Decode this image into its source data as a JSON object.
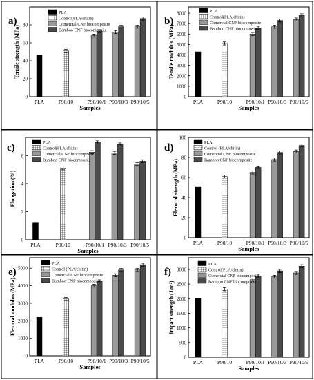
{
  "palette": {
    "border": "#000000",
    "pla": "#000000",
    "comercial": "#9a9a9a",
    "bamboo": "#4a4a4a",
    "control_hatch": "grid-hatch-pattern"
  },
  "chart_data": [
    {
      "type": "bar",
      "panel_label": "a)",
      "ylabel": "Tensile strength (MPa)",
      "xlabel": "Samples",
      "ylim": [
        0,
        100
      ],
      "yticks": [
        0,
        20,
        40,
        60,
        80
      ],
      "categories": [
        "PLA",
        "P90/10",
        "P90/10/1",
        "P90/10/3",
        "P90/10/5"
      ],
      "legend_position": "top-left",
      "series": [
        {
          "name": "PLA",
          "values": [
            46,
            null,
            null,
            null,
            null
          ]
        },
        {
          "name": "Control(PLA/chitin)",
          "values": [
            null,
            51,
            null,
            null,
            null
          ]
        },
        {
          "name": "Comercial CNF biocomposite",
          "values": [
            null,
            null,
            68,
            72,
            78
          ]
        },
        {
          "name": "Bamboo CNF biocomposite",
          "values": [
            null,
            null,
            73,
            78,
            87
          ]
        }
      ]
    },
    {
      "type": "bar",
      "panel_label": "b)",
      "ylabel": "Tensile modulus (MPa)",
      "xlabel": "Samples",
      "ylim": [
        0,
        8600
      ],
      "yticks": [
        0,
        1000,
        2000,
        3000,
        4000,
        5000,
        6000,
        7000,
        8000
      ],
      "categories": [
        "PLA",
        "P90/10",
        "P90/10/1",
        "P90/10/3",
        "P90/10/5"
      ],
      "legend_position": "top-left",
      "series": [
        {
          "name": "PLA",
          "values": [
            4300,
            null,
            null,
            null,
            null
          ]
        },
        {
          "name": "Control(PLA/chitin)",
          "values": [
            null,
            5100,
            null,
            null,
            null
          ]
        },
        {
          "name": "Comercial CNF biocomposite",
          "values": [
            null,
            null,
            6000,
            6700,
            7400
          ]
        },
        {
          "name": "Bamboo CNF biocomposite",
          "values": [
            null,
            null,
            6600,
            7300,
            7800
          ]
        }
      ]
    },
    {
      "type": "bar",
      "panel_label": "c)",
      "ylabel": "Elongation (%)",
      "xlabel": "Samples",
      "ylim": [
        0,
        7.3
      ],
      "yticks": [
        0,
        2,
        4,
        6
      ],
      "categories": [
        "PLA",
        "P90/10",
        "P90/10/1",
        "P90/10/3",
        "P90/10/5"
      ],
      "legend_position": "top",
      "series": [
        {
          "name": "PLA",
          "values": [
            1.2,
            null,
            null,
            null,
            null
          ]
        },
        {
          "name": "Control(PLA/chitin)",
          "values": [
            null,
            5.1,
            null,
            null,
            null
          ]
        },
        {
          "name": "Comercial CNF biocomposite",
          "values": [
            null,
            null,
            6.25,
            6.2,
            5.4
          ]
        },
        {
          "name": "Bamboo CNF biocomposite",
          "values": [
            null,
            null,
            6.95,
            6.8,
            5.6
          ]
        }
      ]
    },
    {
      "type": "bar",
      "panel_label": "d)",
      "ylabel": "Flexural strength (MPa)",
      "xlabel": "Samples",
      "ylim": [
        0,
        100
      ],
      "yticks": [
        0,
        20,
        40,
        60,
        80,
        100
      ],
      "categories": [
        "PLA",
        "P90/10",
        "P90/10/1",
        "P90/10/3",
        "P90/10/5"
      ],
      "legend_position": "top-left",
      "series": [
        {
          "name": "PLA",
          "values": [
            51,
            null,
            null,
            null,
            null
          ]
        },
        {
          "name": "Control (PLA/chitin)",
          "values": [
            null,
            61,
            null,
            null,
            null
          ]
        },
        {
          "name": "Comercial CNF biocomposite",
          "values": [
            null,
            null,
            65,
            78,
            86
          ]
        },
        {
          "name": "Bamboo CNF biocomposite",
          "values": [
            null,
            null,
            70,
            85,
            92
          ]
        }
      ]
    },
    {
      "type": "bar",
      "panel_label": "e)",
      "ylabel": "Flexural modulus (MPa)",
      "xlabel": "Samples",
      "ylim": [
        0,
        5600
      ],
      "yticks": [
        0,
        1000,
        2000,
        3000,
        4000,
        5000
      ],
      "categories": [
        "PLA",
        "P90/10",
        "P90/10/1",
        "P90/10/3",
        "P90/10/5"
      ],
      "legend_position": "top-left",
      "series": [
        {
          "name": "PLA",
          "values": [
            2200,
            null,
            null,
            null,
            null
          ]
        },
        {
          "name": "Control (PLA/chitin)",
          "values": [
            null,
            3250,
            null,
            null,
            null
          ]
        },
        {
          "name": "Comercial CNF biocomposite",
          "values": [
            null,
            null,
            4000,
            4600,
            4900
          ]
        },
        {
          "name": "Bamboo CNF biocomposite",
          "values": [
            null,
            null,
            4250,
            4900,
            5200
          ]
        }
      ]
    },
    {
      "type": "bar",
      "panel_label": "f)",
      "ylabel": "Impact strength (J/m²)",
      "xlabel": "Samples",
      "ylim": [
        0,
        3400
      ],
      "yticks": [
        0,
        500,
        1000,
        1500,
        2000,
        2500,
        3000
      ],
      "categories": [
        "PLA",
        "P90/10",
        "P90/10/1",
        "P90/10/3",
        "P90/10/5"
      ],
      "legend_position": "top-left",
      "series": [
        {
          "name": "PLA",
          "values": [
            2000,
            null,
            null,
            null,
            null
          ]
        },
        {
          "name": "Control(PLA/chitin)",
          "values": [
            null,
            2320,
            null,
            null,
            null
          ]
        },
        {
          "name": "Comercial CNF biocomposite",
          "values": [
            null,
            null,
            2650,
            2750,
            2880
          ]
        },
        {
          "name": "Bamboo CNF biocomposite",
          "values": [
            null,
            null,
            2780,
            2950,
            3110
          ]
        }
      ]
    }
  ]
}
